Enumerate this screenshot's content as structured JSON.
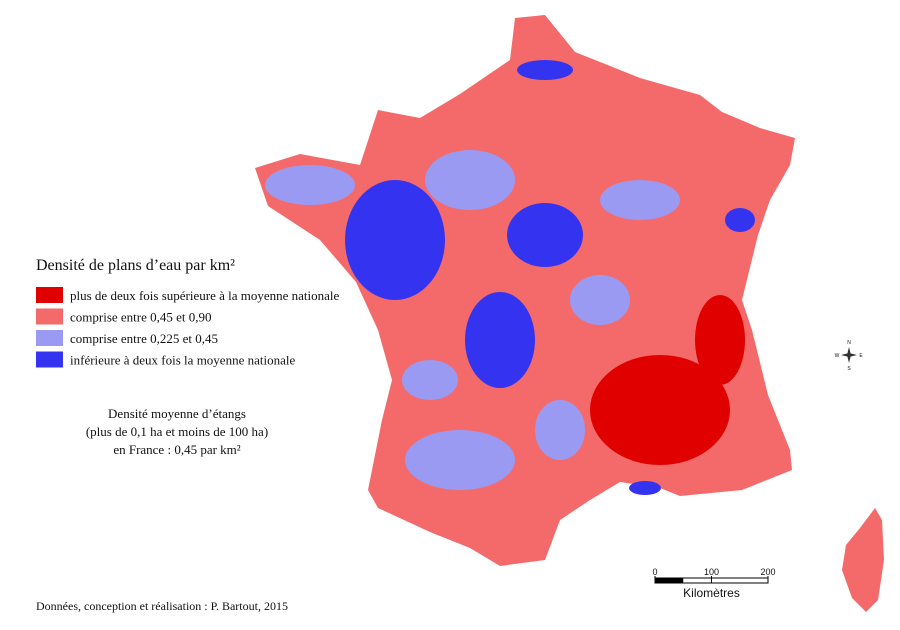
{
  "legend": {
    "title": "Densité de plans d’eau par km²",
    "items": [
      {
        "label": "plus de deux fois supérieure à la moyenne nationale",
        "color": "#e00000"
      },
      {
        "label": "comprise entre 0,45 et 0,90",
        "color": "#f46a6a"
      },
      {
        "label": "comprise entre 0,225 et 0,45",
        "color": "#9a9af2"
      },
      {
        "label": "inférieure à deux fois la moyenne nationale",
        "color": "#3434f0"
      }
    ]
  },
  "note": [
    "Densité moyenne d’étangs",
    "(plus de 0,1 ha et moins de 100 ha)",
    "en France : 0,45 par km²"
  ],
  "scale_bar": {
    "ticks": [
      0,
      100,
      200
    ],
    "unit": "Kilomètres"
  },
  "compass": {
    "north": "N",
    "south": "S",
    "east": "E",
    "west": "W"
  },
  "credit": "Données, conception et réalisation : P. Bartout, 2015"
}
